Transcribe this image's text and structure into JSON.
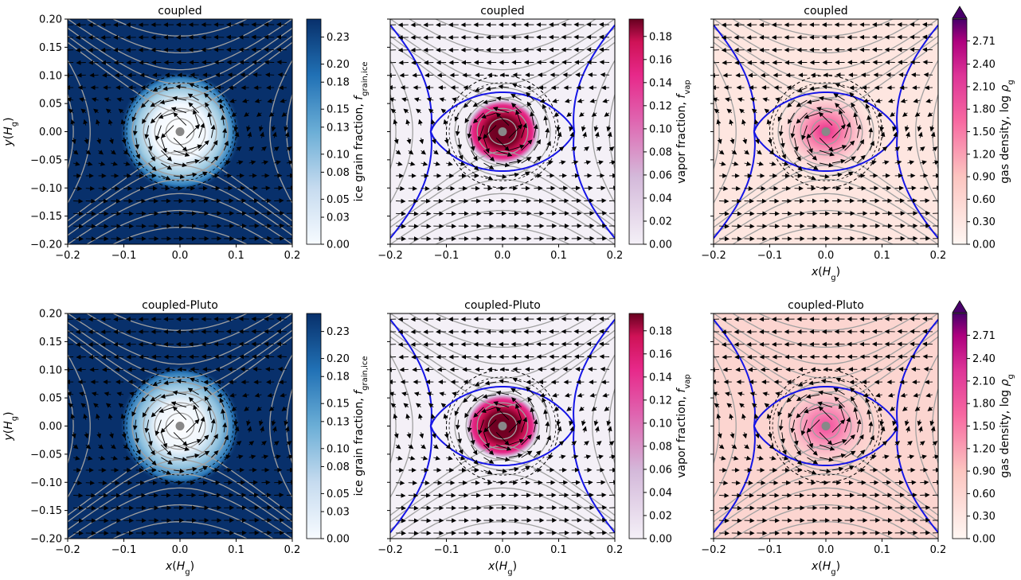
{
  "chart_data": [
    {
      "type": "heatmap",
      "title": "coupled",
      "quantity": "ice",
      "xlabel": "",
      "ylabel": "y(H_g)",
      "xlim": [
        -0.2,
        0.2
      ],
      "ylim": [
        -0.2,
        0.2
      ],
      "xticks": [
        "−0.2",
        "−0.1",
        "0.0",
        "0.1",
        "0.2"
      ],
      "yticks": [
        "0.20",
        "0.15",
        "0.10",
        "0.05",
        "0.00",
        "−0.05",
        "−0.10",
        "−0.15",
        "−0.20"
      ],
      "colorbar": {
        "label": "ice grain fraction, f_grain,ice",
        "range": [
          0.0,
          0.25
        ],
        "ticks": [
          "0.23",
          "0.20",
          "0.18",
          "0.15",
          "0.13",
          "0.10",
          "0.08",
          "0.05",
          "0.03",
          "0.00"
        ],
        "extend_top": false
      }
    },
    {
      "type": "heatmap",
      "title": "coupled",
      "quantity": "vap",
      "xlabel": "",
      "ylabel": "",
      "xlim": [
        -0.2,
        0.2
      ],
      "ylim": [
        -0.2,
        0.2
      ],
      "xticks": [
        "−0.2",
        "−0.1",
        "0.0",
        "0.1",
        "0.2"
      ],
      "yticks": [],
      "colorbar": {
        "label": "vapor fraction, f_vap",
        "range": [
          0.0,
          0.195
        ],
        "ticks": [
          "0.18",
          "0.16",
          "0.14",
          "0.12",
          "0.10",
          "0.08",
          "0.06",
          "0.04",
          "0.02",
          "0.00"
        ],
        "extend_top": false
      }
    },
    {
      "type": "heatmap",
      "title": "coupled",
      "quantity": "gas",
      "xlabel": "x(H_g)",
      "ylabel": "",
      "xlim": [
        -0.2,
        0.2
      ],
      "ylim": [
        -0.2,
        0.2
      ],
      "xticks": [
        "−0.2",
        "−0.1",
        "0.0",
        "0.1",
        "0.2"
      ],
      "yticks": [],
      "colorbar": {
        "label": "gas density, log ρ_g",
        "range": [
          0.0,
          3.0
        ],
        "ticks": [
          "2.71",
          "2.40",
          "2.10",
          "1.80",
          "1.50",
          "1.20",
          "0.90",
          "0.60",
          "0.30",
          "0.00"
        ],
        "extend_top": true
      }
    },
    {
      "type": "heatmap",
      "title": "coupled-Pluto",
      "quantity": "ice",
      "xlabel": "x(H_g)",
      "ylabel": "y(H_g)",
      "xlim": [
        -0.2,
        0.2
      ],
      "ylim": [
        -0.2,
        0.2
      ],
      "xticks": [
        "−0.2",
        "−0.1",
        "0.0",
        "0.1",
        "0.2"
      ],
      "yticks": [
        "0.20",
        "0.15",
        "0.10",
        "0.05",
        "0.00",
        "−0.05",
        "−0.10",
        "−0.15",
        "−0.20"
      ],
      "colorbar": {
        "label": "ice grain fraction, f_grain,ice",
        "range": [
          0.0,
          0.25
        ],
        "ticks": [
          "0.23",
          "0.20",
          "0.18",
          "0.15",
          "0.13",
          "0.10",
          "0.08",
          "0.05",
          "0.03",
          "0.00"
        ],
        "extend_top": false
      }
    },
    {
      "type": "heatmap",
      "title": "coupled-Pluto",
      "quantity": "vap",
      "xlabel": "x(H_g)",
      "ylabel": "",
      "xlim": [
        -0.2,
        0.2
      ],
      "ylim": [
        -0.2,
        0.2
      ],
      "xticks": [
        "−0.2",
        "−0.1",
        "0.0",
        "0.1",
        "0.2"
      ],
      "yticks": [],
      "colorbar": {
        "label": "vapor fraction, f_vap",
        "range": [
          0.0,
          0.195
        ],
        "ticks": [
          "0.18",
          "0.16",
          "0.14",
          "0.12",
          "0.10",
          "0.08",
          "0.06",
          "0.04",
          "0.02",
          "0.00"
        ],
        "extend_top": false
      }
    },
    {
      "type": "heatmap",
      "title": "coupled-Pluto",
      "quantity": "gas",
      "xlabel": "x(H_g)",
      "ylabel": "",
      "xlim": [
        -0.2,
        0.2
      ],
      "ylim": [
        -0.2,
        0.2
      ],
      "xticks": [
        "−0.2",
        "−0.1",
        "0.0",
        "0.1",
        "0.2"
      ],
      "yticks": [],
      "colorbar": {
        "label": "gas density, log ρ_g",
        "range": [
          0.0,
          3.0
        ],
        "ticks": [
          "2.71",
          "2.40",
          "2.10",
          "1.80",
          "1.50",
          "1.20",
          "0.90",
          "0.60",
          "0.30",
          "0.00"
        ],
        "extend_top": true
      }
    }
  ],
  "colors": {
    "ice_low": "#f7fbff",
    "ice_high": "#08306b",
    "vap_low": "#f4f0f7",
    "vap_mid": "#e7298a",
    "vap_high": "#67001f",
    "gas_low": "#fff7f3",
    "gas_mid": "#f768a1",
    "gas_high": "#49006a",
    "separatrix": "#1515e6",
    "streamline": "#a0a0a0",
    "planet": "#888888"
  }
}
